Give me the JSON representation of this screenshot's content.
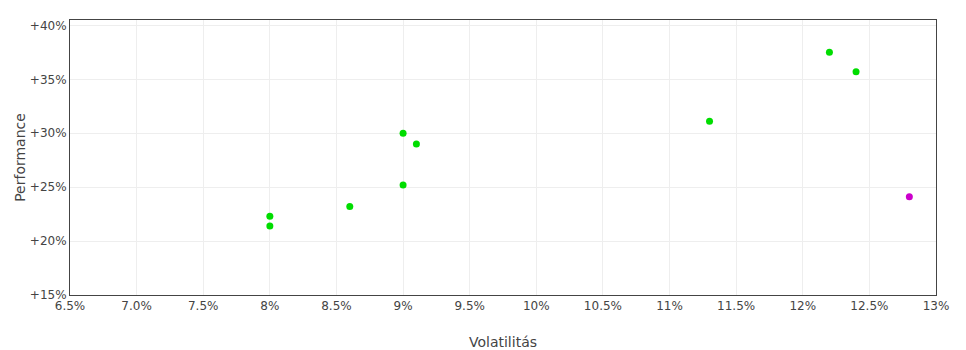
{
  "chart_data": {
    "type": "scatter",
    "xlabel": "Volatilitás",
    "ylabel": "Performance",
    "xlim": [
      0.065,
      0.13
    ],
    "ylim": [
      0.15,
      0.405
    ],
    "xticks": [
      {
        "value": 0.065,
        "label": "6.5%"
      },
      {
        "value": 0.07,
        "label": "7.0%"
      },
      {
        "value": 0.075,
        "label": "7.5%"
      },
      {
        "value": 0.08,
        "label": "8%"
      },
      {
        "value": 0.085,
        "label": "8.5%"
      },
      {
        "value": 0.09,
        "label": "9%"
      },
      {
        "value": 0.095,
        "label": "9.5%"
      },
      {
        "value": 0.1,
        "label": "10%"
      },
      {
        "value": 0.105,
        "label": "10.5%"
      },
      {
        "value": 0.11,
        "label": "11%"
      },
      {
        "value": 0.115,
        "label": "11.5%"
      },
      {
        "value": 0.12,
        "label": "12%"
      },
      {
        "value": 0.125,
        "label": "12.5%"
      },
      {
        "value": 0.13,
        "label": "13%"
      }
    ],
    "yticks": [
      {
        "value": 0.15,
        "label": "+15%"
      },
      {
        "value": 0.2,
        "label": "+20%"
      },
      {
        "value": 0.25,
        "label": "+25%"
      },
      {
        "value": 0.3,
        "label": "+30%"
      },
      {
        "value": 0.35,
        "label": "+35%"
      },
      {
        "value": 0.4,
        "label": "+40%"
      }
    ],
    "grid": true,
    "series": [
      {
        "color": "#00dd00",
        "x": [
          0.08,
          0.08,
          0.086,
          0.09,
          0.09,
          0.091,
          0.113,
          0.122,
          0.124
        ],
        "values": [
          0.223,
          0.214,
          0.232,
          0.252,
          0.3,
          0.29,
          0.311,
          0.375,
          0.357
        ]
      },
      {
        "color": "#cc00cc",
        "x": [
          0.128
        ],
        "values": [
          0.241
        ]
      }
    ]
  }
}
